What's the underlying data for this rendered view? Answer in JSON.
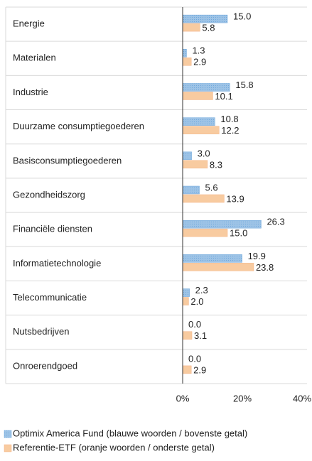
{
  "chart_data": {
    "type": "bar",
    "orientation": "horizontal",
    "categories": [
      "Energie",
      "Materialen",
      "Industrie",
      "Duurzame consumptiegoederen",
      "Basisconsumptiegoederen",
      "Gezondheidszorg",
      "Financiële diensten",
      "Informatietechnologie",
      "Telecommunicatie",
      "Nutsbedrijven",
      "Onroerendgoed"
    ],
    "series": [
      {
        "name": "Optimix America Fund (blauwe woorden / bovenste getal)",
        "color": "#9dc3e6",
        "values": [
          15.0,
          1.3,
          15.8,
          10.8,
          3.0,
          5.6,
          26.3,
          19.9,
          2.3,
          0.0,
          0.0
        ],
        "value_labels": [
          "15.0",
          "1.3",
          "15.8",
          "10.8",
          "3.0",
          "5.6",
          "26.3",
          "19.9",
          "2.3",
          "0.0",
          "0.0"
        ]
      },
      {
        "name": "Referentie-ETF (oranje woorden / onderste getal)",
        "color": "#f8cba0",
        "values": [
          5.8,
          2.9,
          10.1,
          12.2,
          8.3,
          13.9,
          15.0,
          23.8,
          2.0,
          3.1,
          2.9
        ],
        "value_labels": [
          "5.8",
          "2.9",
          "10.1",
          "12.2",
          "8.3",
          "13.9",
          "15.0",
          "23.8",
          "2.0",
          "3.1",
          "2.9"
        ]
      }
    ],
    "xlim": [
      0,
      40
    ],
    "xticks": [
      {
        "value": 0,
        "label": "0%"
      },
      {
        "value": 20,
        "label": "20%"
      },
      {
        "value": 40,
        "label": "40%"
      }
    ]
  }
}
